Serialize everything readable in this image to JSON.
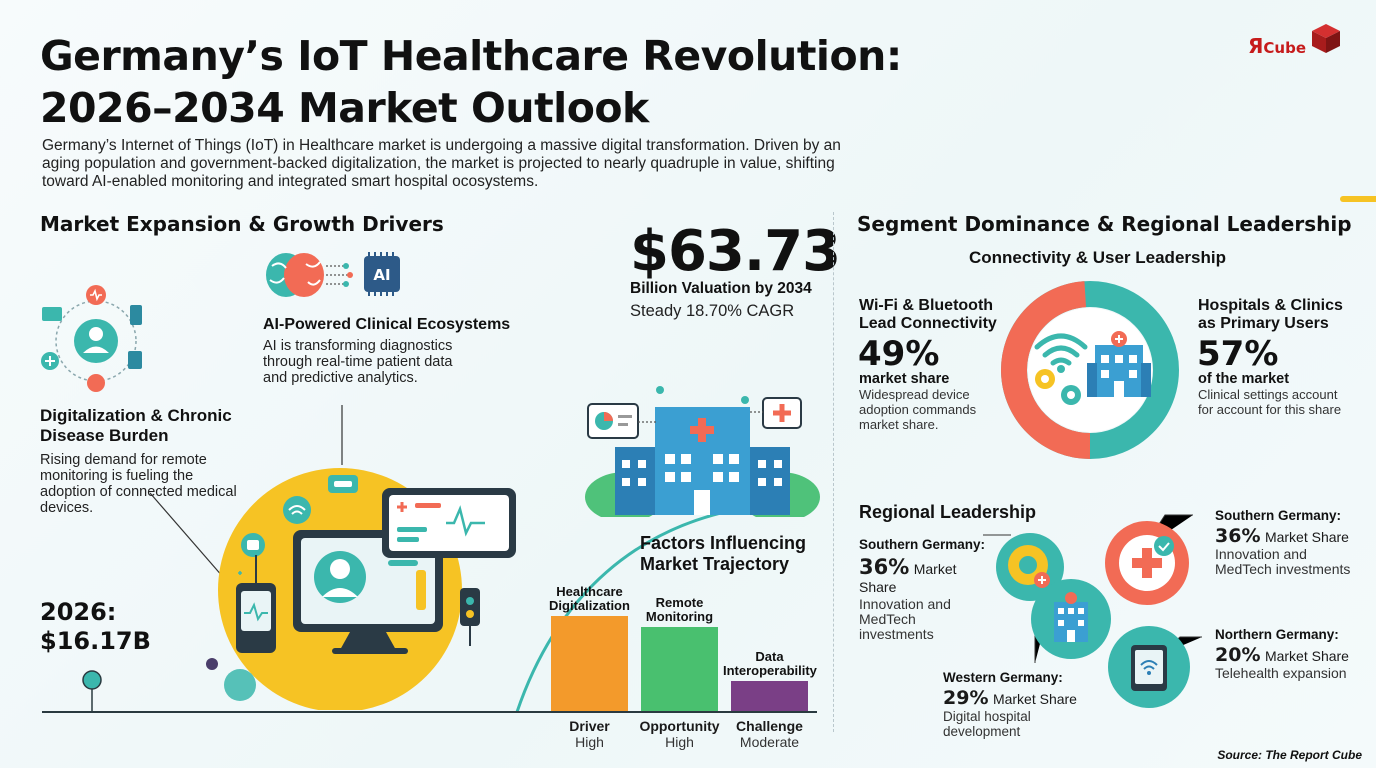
{
  "header": {
    "title_line1": "Germany’s IoT Healthcare Revolution:",
    "title_line2": "2026–2034 Market Outlook",
    "intro": "Germany’s Internet of Things (IoT) in Healthcare market is undergoing a massive digital transformation. Driven by an aging population and government-backed digitalization, the market is projected to nearly quadruple in value, shifting toward AI-enabled monitoring and integrated smart hospital ocosystems."
  },
  "logo": {
    "r": "Я",
    "cube": "Cube"
  },
  "left_section": {
    "heading": "Market Expansion & Growth Drivers",
    "ai": {
      "icon_label": "AI",
      "title": "AI-Powered Clinical Ecosystems",
      "text": "AI is transforming diagnostics through real-time patient data and predictive analytics."
    },
    "digital": {
      "title": "Digitalization & Chronic Disease Burden",
      "text": "Rising demand for remote monitoring is fueling the adoption of connected medical devices."
    },
    "start_value": {
      "year": "2026:",
      "value": "$16.17B"
    },
    "end_value": {
      "value": "$63.73",
      "line1": "Billion Valuation by 2034",
      "line2": "Steady 18.70% CAGR"
    }
  },
  "factors": {
    "title": "Factors Influencing Market Trajectory",
    "bars": [
      {
        "label": "Healthcare Digitalization",
        "role": "Driver",
        "level": "High",
        "color": "#f39a2b",
        "height_fraction": 1.0
      },
      {
        "label": "Remote Monitoring",
        "role": "Opportunity",
        "level": "High",
        "color": "#49c06f",
        "height_fraction": 0.88
      },
      {
        "label": "Data Interoperability",
        "role": "Challenge",
        "level": "Moderate",
        "color": "#7a3f86",
        "height_fraction": 0.32
      }
    ]
  },
  "right_section": {
    "heading": "Segment Dominance & Regional Leadership",
    "connectivity": {
      "title": "Connectivity & User Leadership",
      "left": {
        "title": "Wi-Fi & Bluetooth Lead Connectivity",
        "pct": "49%",
        "pct_label": "market share",
        "text": "Widespread device adoption commands market share.",
        "fraction": 0.49,
        "color": "#f26b55"
      },
      "right": {
        "title": "Hospitals & Clinics as Primary Users",
        "pct": "57%",
        "pct_label": "of the market",
        "text": "Clinical settings account for account for this share",
        "fraction": 0.57,
        "color": "#3bb7ad"
      }
    },
    "regional": {
      "title": "Regional Leadership",
      "items": [
        {
          "name": "Southern Germany:",
          "pct": "36%",
          "share": "Market Share",
          "text": "Innovation and MedTech investments"
        },
        {
          "name": "Western Germany:",
          "pct": "29%",
          "share": "Market Share",
          "text": "Digital hospital development"
        },
        {
          "name": "Southern Germany:",
          "pct": "36%",
          "share": "Market Share",
          "text": "Innovation and MedTech investments"
        },
        {
          "name": "Northern Germany:",
          "pct": "20%",
          "share": "Market Share",
          "text": "Telehealth expansion"
        }
      ]
    }
  },
  "footer": {
    "source": "Source: The Report Cube"
  },
  "colors": {
    "accent_teal": "#3bb7ad",
    "accent_coral": "#f26b55",
    "accent_yellow": "#f6c324",
    "dark": "#111111"
  },
  "icons": [
    "patient-network-icon",
    "brain-icon",
    "ai-chip-icon",
    "smart-hospital-icon",
    "monitor-doctor-icon",
    "wifi-icon",
    "gear-icon",
    "hospital-icon",
    "tablet-wifi-icon",
    "medical-cross-icon"
  ]
}
